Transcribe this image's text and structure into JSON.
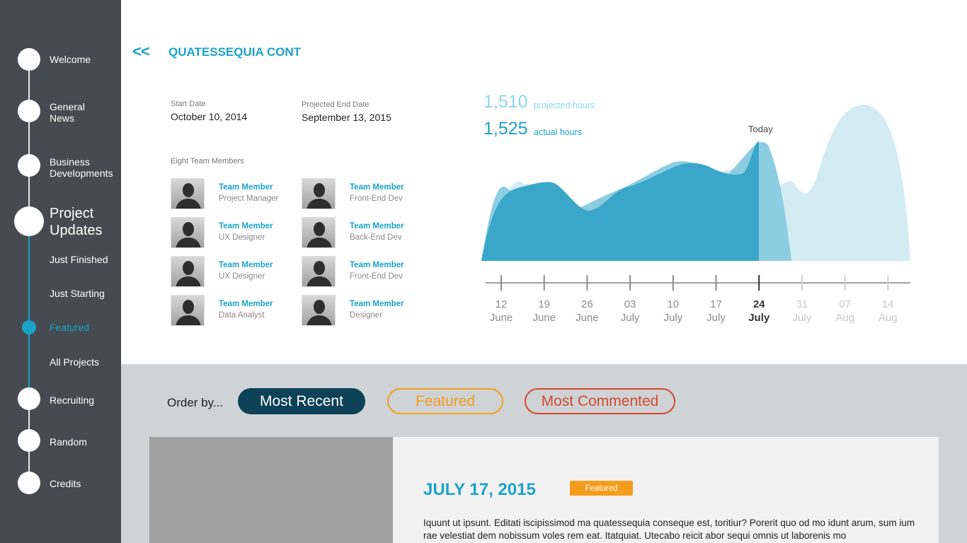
{
  "sidebar": {
    "items": [
      {
        "label": "Welcome"
      },
      {
        "label": "General\nNews"
      },
      {
        "label": "Business\nDevelopments"
      },
      {
        "label": "Project\nUpdates"
      },
      {
        "label": "Just Finished"
      },
      {
        "label": "Just Starting"
      },
      {
        "label": "Featured"
      },
      {
        "label": "All Projects"
      },
      {
        "label": "Recruiting"
      },
      {
        "label": "Random"
      },
      {
        "label": "Credits"
      }
    ]
  },
  "header": {
    "back_label": "<<",
    "title": "QUATESSEQUIA CONT"
  },
  "project": {
    "start_label": "Start Date",
    "start_value": "October 10, 2014",
    "end_label": "Projected End Date",
    "end_value": "September 13, 2015",
    "team_label": "Eight Team Members",
    "members": [
      {
        "name": "Team Member",
        "role": "Project Manager"
      },
      {
        "name": "Team Member",
        "role": "Front-End Dev"
      },
      {
        "name": "Team Member",
        "role": "UX Designer"
      },
      {
        "name": "Team Member",
        "role": "Back-End Dev"
      },
      {
        "name": "Team Member",
        "role": "UX Designer"
      },
      {
        "name": "Team Member",
        "role": "Front-End Dev"
      },
      {
        "name": "Team Member",
        "role": "Data Analyst"
      },
      {
        "name": "Team Member",
        "role": "Designer"
      }
    ]
  },
  "hours": {
    "projected_value": "1,510",
    "projected_label": "projected hours",
    "actual_value": "1,525",
    "actual_label": "actual hours",
    "today_label": "Today"
  },
  "chart_data": {
    "type": "area",
    "title": "",
    "x_ticks": [
      {
        "day": "12",
        "month": "June"
      },
      {
        "day": "19",
        "month": "June"
      },
      {
        "day": "26",
        "month": "June"
      },
      {
        "day": "03",
        "month": "July"
      },
      {
        "day": "10",
        "month": "July"
      },
      {
        "day": "17",
        "month": "July"
      },
      {
        "day": "24",
        "month": "July"
      },
      {
        "day": "31",
        "month": "July"
      },
      {
        "day": "07",
        "month": "Aug"
      },
      {
        "day": "14",
        "month": "Aug"
      }
    ],
    "today_index": 6,
    "series": [
      {
        "name": "projected hours",
        "color": "#8fd0e6"
      },
      {
        "name": "actual hours",
        "color": "#1e9fc9"
      }
    ]
  },
  "filters": {
    "order_by_label": "Order by...",
    "most_recent": "Most Recent",
    "featured": "Featured",
    "most_commented": "Most Commented"
  },
  "post": {
    "date": "JULY 17, 2015",
    "badge": "Featured",
    "text": "Iquunt ut ipsunt. Editati iscipissimod ma quatessequia conseque est, toritiur? Porerit quo od mo idunt arum, sum ium rae velestiat dem nobissum voles rem eat. Itatquiat. Utecabo reicit abor sequi omnis ut laborenis mo"
  },
  "colors": {
    "accent": "#1aa3c8",
    "sidebar_bg": "#454b50",
    "featured": "#f49d1c",
    "commented": "#d2482d",
    "recent": "#0d4157"
  }
}
